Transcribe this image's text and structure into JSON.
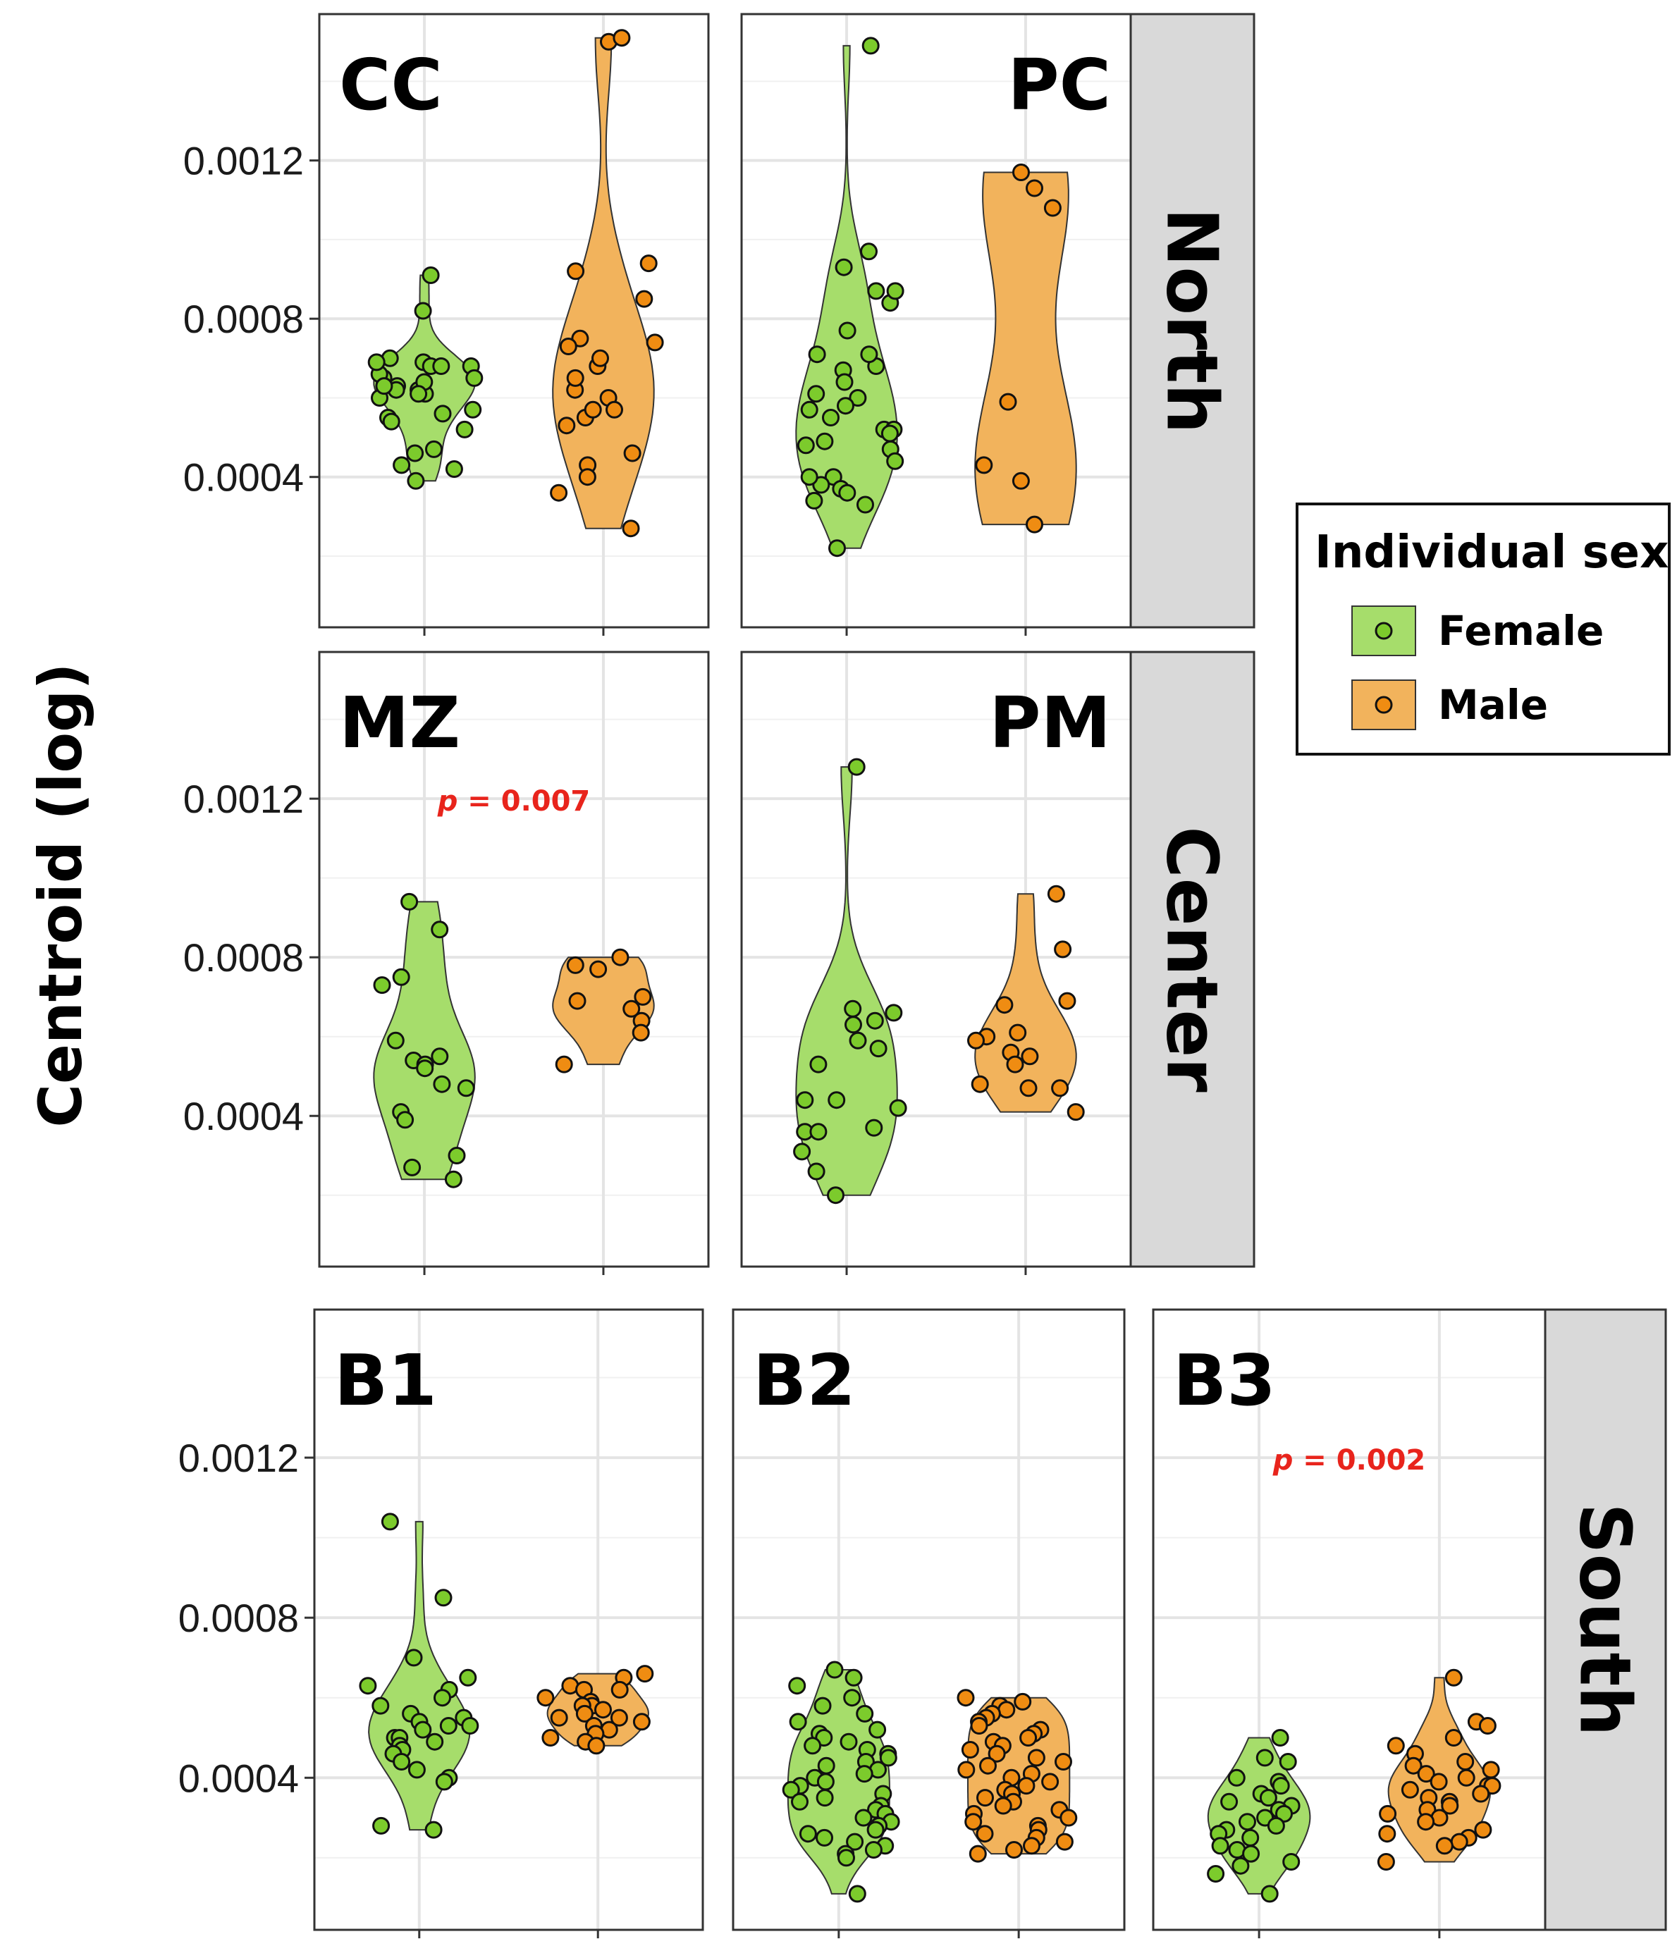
{
  "chart_data": {
    "type": "violin",
    "ylabel": "Centroid (log)",
    "yticks": [
      "0.0004",
      "0.0008",
      "0.0012"
    ],
    "ylim": [
      2e-05,
      0.00157
    ],
    "legend": {
      "title": "Individual sex",
      "placement": "right",
      "entries": [
        {
          "name": "Female",
          "fill": "#a6dd6b",
          "point": "#7ccb2c"
        },
        {
          "name": "Male",
          "fill": "#f2b35c",
          "point": "#ef8c12"
        }
      ]
    },
    "regions": [
      {
        "name": "North",
        "panels": [
          {
            "label": "CC",
            "label_anchor": "left",
            "pvalue": "",
            "female": [
              0.00069,
              0.00068,
              0.00065,
              0.00063,
              0.00062,
              0.00061,
              0.0006,
              0.00052,
              0.00047,
              0.00046,
              0.00043,
              0.00042,
              0.00068,
              0.00066,
              0.00064,
              0.00062,
              0.00056,
              0.00055,
              0.00091,
              0.00082,
              0.0007,
              0.00069,
              0.00068,
              0.00065,
              0.00063,
              0.00061,
              0.00057,
              0.00054,
              0.00039
            ],
            "male": [
              0.0015,
              0.00151,
              0.00075,
              0.00073,
              0.00074,
              0.00068,
              0.00062,
              0.0006,
              0.00055,
              0.00053,
              0.00046,
              0.00043,
              0.0004,
              0.00036,
              0.00094,
              0.00092,
              0.00085,
              0.0007,
              0.00065,
              0.00057,
              0.00057,
              0.00027
            ]
          },
          {
            "label": "PC",
            "label_anchor": "right",
            "pvalue": "",
            "female": [
              0.00149,
              0.00093,
              0.00087,
              0.00084,
              0.00068,
              0.00067,
              0.00064,
              0.0006,
              0.00058,
              0.00052,
              0.0004,
              0.00038,
              0.00037,
              0.00036,
              0.00034,
              0.00033,
              0.00022,
              0.00097,
              0.00087,
              0.00077,
              0.00071,
              0.00071,
              0.00061,
              0.00057,
              0.00055,
              0.00052,
              0.00051,
              0.00049,
              0.00048,
              0.00047,
              0.00044,
              0.0004
            ],
            "male": [
              0.00113,
              0.00108,
              0.00117,
              0.00059,
              0.00043,
              0.00039,
              0.00028
            ]
          }
        ]
      },
      {
        "name": "Center",
        "panels": [
          {
            "label": "MZ",
            "label_anchor": "left",
            "pvalue": "0.007",
            "female": [
              0.00094,
              0.00087,
              0.00075,
              0.00073,
              0.00059,
              0.00055,
              0.00054,
              0.00053,
              0.00052,
              0.00048,
              0.00047,
              0.00041,
              0.00039,
              0.0003,
              0.00027,
              0.00024
            ],
            "male": [
              0.0008,
              0.00078,
              0.00077,
              0.0007,
              0.00069,
              0.00067,
              0.00064,
              0.00061,
              0.00053
            ]
          },
          {
            "label": "PM",
            "label_anchor": "right",
            "pvalue": "",
            "female": [
              0.00128,
              0.00067,
              0.00066,
              0.00064,
              0.00063,
              0.00059,
              0.00057,
              0.00053,
              0.00044,
              0.00044,
              0.00042,
              0.00037,
              0.00036,
              0.00036,
              0.00031,
              0.00026,
              0.0002
            ],
            "male": [
              0.00096,
              0.00082,
              0.00069,
              0.00068,
              0.00061,
              0.0006,
              0.00059,
              0.00056,
              0.00055,
              0.00053,
              0.00048,
              0.00047,
              0.00047,
              0.00041
            ]
          }
        ]
      },
      {
        "name": "South",
        "panels": [
          {
            "label": "B1",
            "label_anchor": "left",
            "pvalue": "",
            "female": [
              0.00104,
              0.00085,
              0.0007,
              0.00065,
              0.00063,
              0.00062,
              0.0006,
              0.00058,
              0.00056,
              0.00055,
              0.00054,
              0.00053,
              0.00053,
              0.00052,
              0.0005,
              0.0005,
              0.00049,
              0.00048,
              0.00047,
              0.00046,
              0.00044,
              0.00042,
              0.0004,
              0.00039,
              0.00028,
              0.00027
            ],
            "male": [
              0.00066,
              0.00065,
              0.00063,
              0.00062,
              0.00062,
              0.0006,
              0.00059,
              0.00058,
              0.00058,
              0.00057,
              0.00056,
              0.00055,
              0.00055,
              0.00054,
              0.00053,
              0.00052,
              0.00051,
              0.0005,
              0.00049,
              0.00048
            ]
          },
          {
            "label": "B2",
            "label_anchor": "left",
            "pvalue": "",
            "female": [
              0.00067,
              0.00065,
              0.00063,
              0.0006,
              0.00058,
              0.00056,
              0.00054,
              0.00052,
              0.00051,
              0.0005,
              0.00049,
              0.00048,
              0.00047,
              0.00046,
              0.00045,
              0.00044,
              0.00043,
              0.00042,
              0.00041,
              0.0004,
              0.00039,
              0.00038,
              0.00037,
              0.00036,
              0.00035,
              0.00034,
              0.00033,
              0.00032,
              0.00031,
              0.0003,
              0.00029,
              0.00028,
              0.00027,
              0.00026,
              0.00025,
              0.00024,
              0.00023,
              0.00022,
              0.00021,
              0.0002,
              0.00011
            ],
            "male": [
              0.0006,
              0.00059,
              0.00058,
              0.00057,
              0.00056,
              0.00055,
              0.00054,
              0.00053,
              0.00052,
              0.00051,
              0.0005,
              0.00049,
              0.00048,
              0.00047,
              0.00046,
              0.00045,
              0.00044,
              0.00043,
              0.00042,
              0.00041,
              0.0004,
              0.00039,
              0.00038,
              0.00037,
              0.00036,
              0.00035,
              0.00034,
              0.00033,
              0.00032,
              0.00031,
              0.0003,
              0.00029,
              0.00028,
              0.00027,
              0.00026,
              0.00025,
              0.00024,
              0.00023,
              0.00022,
              0.00021
            ]
          },
          {
            "label": "B3",
            "label_anchor": "left",
            "pvalue": "0.002",
            "female": [
              0.0005,
              0.00045,
              0.00044,
              0.0004,
              0.00039,
              0.00038,
              0.00036,
              0.00035,
              0.00034,
              0.00033,
              0.00032,
              0.00031,
              0.0003,
              0.00029,
              0.00028,
              0.00027,
              0.00026,
              0.00025,
              0.00023,
              0.00022,
              0.00021,
              0.00019,
              0.00018,
              0.00016,
              0.00011
            ],
            "male": [
              0.00065,
              0.00054,
              0.00053,
              0.0005,
              0.00048,
              0.00046,
              0.00044,
              0.00043,
              0.00042,
              0.00041,
              0.0004,
              0.00039,
              0.00038,
              0.00038,
              0.00037,
              0.00036,
              0.00035,
              0.00034,
              0.00033,
              0.00032,
              0.00031,
              0.0003,
              0.00029,
              0.00027,
              0.00026,
              0.00025,
              0.00024,
              0.00023,
              0.00019
            ]
          }
        ]
      }
    ]
  }
}
